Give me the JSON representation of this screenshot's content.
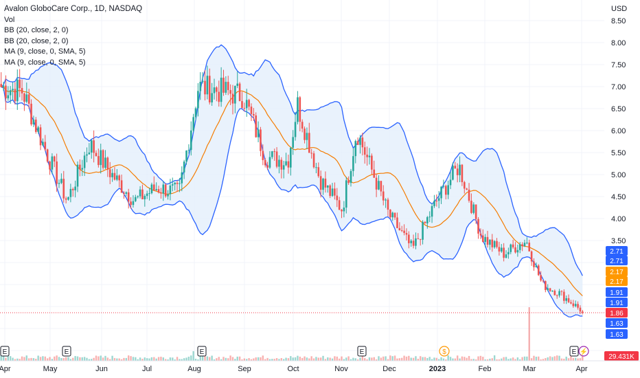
{
  "header": {
    "title": "Avalon GloboCare Corp., 1D, NASDAQ",
    "indicators": [
      "Vol",
      "BB (20, close, 2, 0)",
      "BB (20, close, 2, 0)",
      "MA (9, close, 0, SMA, 5)",
      "MA (9, close, 0, SMA, 5)"
    ]
  },
  "price_axis": {
    "currency": "USD",
    "tick_labels": [
      "8.50",
      "8.00",
      "7.50",
      "7.00",
      "6.50",
      "6.00",
      "5.50",
      "5.00",
      "4.50",
      "4.00",
      "3.50"
    ]
  },
  "time_axis": {
    "labels": [
      "Apr",
      "May",
      "Jun",
      "Jul",
      "Aug",
      "Sep",
      "Oct",
      "Nov",
      "Dec",
      "2023",
      "Feb",
      "Mar",
      "Apr"
    ]
  },
  "event_markers": [
    {
      "glyph": "E",
      "kind": "earnings"
    },
    {
      "glyph": "E",
      "kind": "earnings"
    },
    {
      "glyph": "E",
      "kind": "earnings"
    },
    {
      "glyph": "E",
      "kind": "earnings"
    },
    {
      "glyph": "$",
      "kind": "dividend"
    },
    {
      "glyph": "E",
      "kind": "earnings"
    },
    {
      "glyph": "⚡",
      "kind": "split"
    }
  ],
  "price_tags": [
    {
      "label": "2.71",
      "color": "#2962ff"
    },
    {
      "label": "2.71",
      "color": "#2962ff"
    },
    {
      "label": "2.17",
      "color": "#ff9800"
    },
    {
      "label": "2.17",
      "color": "#ff9800"
    },
    {
      "label": "1.91",
      "color": "#2962ff"
    },
    {
      "label": "1.91",
      "color": "#2962ff"
    },
    {
      "label": "1.86",
      "color": "#f23645"
    },
    {
      "label": "1.63",
      "color": "#2962ff"
    },
    {
      "label": "1.63",
      "color": "#2962ff"
    },
    {
      "label": "29.431K",
      "color": "#f23645"
    }
  ],
  "colors": {
    "up": "#26a69a",
    "down": "#ef5350",
    "band_line": "#2962ff",
    "band_fill": "#e3effb",
    "ma": "#f57c00",
    "grid": "#f0f3fa"
  },
  "chart_data": {
    "type": "candlestick",
    "title": "Avalon GloboCare Corp., 1D, NASDAQ",
    "ylabel": "USD",
    "ylim": [
      1.0,
      8.7
    ],
    "x_range": [
      "Apr 2022",
      "Apr 2023"
    ],
    "last_price": 1.86,
    "last_volume": "29.431K",
    "bollinger_upper_last": 2.71,
    "bollinger_lower_last": 1.63,
    "ma_last": 2.17,
    "close_path": [
      {
        "x": "2022-04-01",
        "y": 7.0
      },
      {
        "x": "2022-04-15",
        "y": 6.9
      },
      {
        "x": "2022-04-29",
        "y": 5.6
      },
      {
        "x": "2022-05-13",
        "y": 4.4
      },
      {
        "x": "2022-05-27",
        "y": 5.7
      },
      {
        "x": "2022-06-10",
        "y": 5.0
      },
      {
        "x": "2022-06-24",
        "y": 4.4
      },
      {
        "x": "2022-07-08",
        "y": 4.7
      },
      {
        "x": "2022-07-22",
        "y": 4.6
      },
      {
        "x": "2022-08-03",
        "y": 7.0
      },
      {
        "x": "2022-08-17",
        "y": 6.9
      },
      {
        "x": "2022-08-31",
        "y": 6.8
      },
      {
        "x": "2022-09-14",
        "y": 5.4
      },
      {
        "x": "2022-09-28",
        "y": 5.3
      },
      {
        "x": "2022-10-04",
        "y": 6.6
      },
      {
        "x": "2022-10-18",
        "y": 4.9
      },
      {
        "x": "2022-11-01",
        "y": 4.2
      },
      {
        "x": "2022-11-10",
        "y": 6.0
      },
      {
        "x": "2022-11-30",
        "y": 4.1
      },
      {
        "x": "2022-12-15",
        "y": 3.3
      },
      {
        "x": "2022-12-30",
        "y": 4.4
      },
      {
        "x": "2023-01-13",
        "y": 5.2
      },
      {
        "x": "2023-01-27",
        "y": 3.6
      },
      {
        "x": "2023-02-10",
        "y": 3.2
      },
      {
        "x": "2023-02-24",
        "y": 3.5
      },
      {
        "x": "2023-03-06",
        "y": 2.5
      },
      {
        "x": "2023-03-17",
        "y": 2.3
      },
      {
        "x": "2023-03-31",
        "y": 1.9
      }
    ]
  }
}
